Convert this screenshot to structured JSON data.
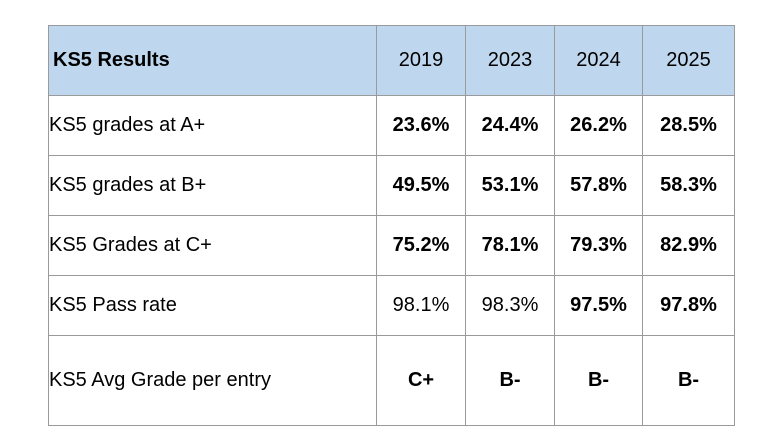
{
  "table": {
    "header": {
      "title": "KS5 Results",
      "years": [
        "2019",
        "2023",
        "2024",
        "2025"
      ]
    },
    "rows": [
      {
        "label": "KS5 grades at A+",
        "values": [
          "23.6%",
          "24.4%",
          "26.2%",
          "28.5%"
        ],
        "bold": [
          true,
          true,
          true,
          true
        ]
      },
      {
        "label": "KS5 grades at B+",
        "values": [
          "49.5%",
          "53.1%",
          "57.8%",
          "58.3%"
        ],
        "bold": [
          true,
          true,
          true,
          true
        ]
      },
      {
        "label": "KS5 Grades at C+",
        "values": [
          "75.2%",
          "78.1%",
          "79.3%",
          "82.9%"
        ],
        "bold": [
          true,
          true,
          true,
          true
        ]
      },
      {
        "label": "KS5 Pass rate",
        "values": [
          "98.1%",
          "98.3%",
          "97.5%",
          "97.8%"
        ],
        "bold": [
          false,
          false,
          true,
          true
        ]
      },
      {
        "label": "KS5 Avg Grade per entry",
        "values": [
          "C+",
          "B-",
          "B-",
          "B-"
        ],
        "bold": [
          true,
          true,
          true,
          true
        ]
      }
    ],
    "colors": {
      "header_background": "#bfd7ee",
      "border": "#9a9a9a"
    }
  }
}
